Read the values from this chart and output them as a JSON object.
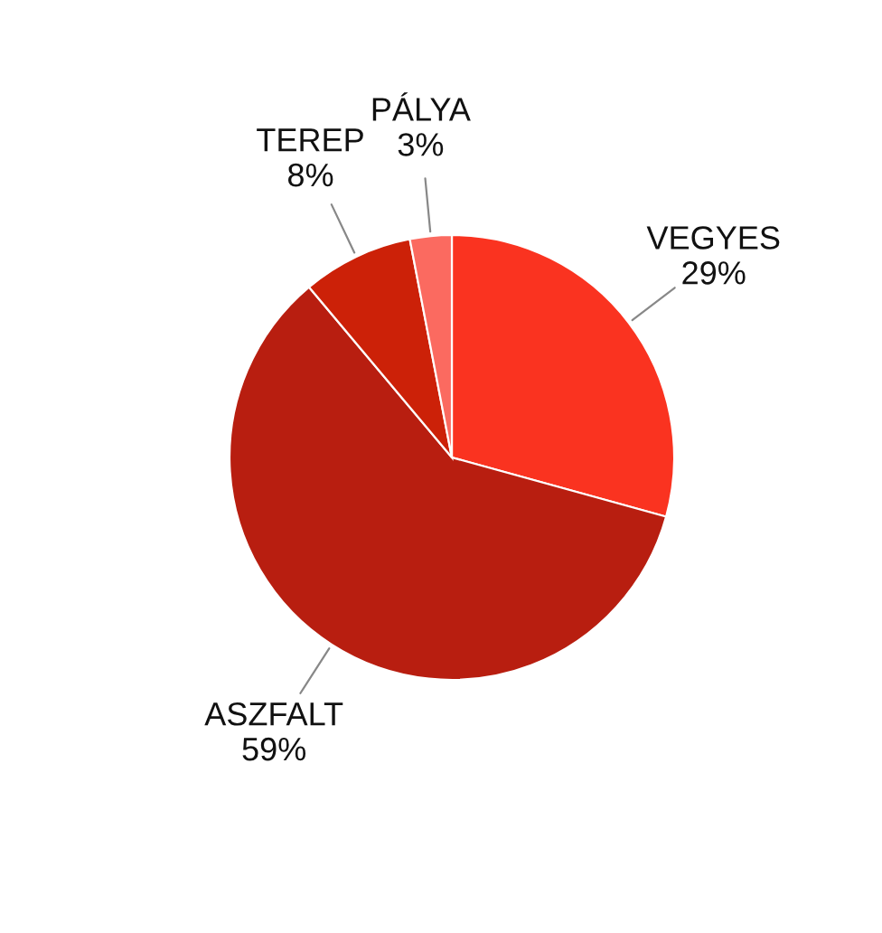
{
  "chart_data": {
    "type": "pie",
    "categories": [
      "VEGYES",
      "ASZFALT",
      "TEREP",
      "PÁLYA"
    ],
    "values": [
      29,
      59,
      8,
      3
    ],
    "value_labels": [
      "29%",
      "59%",
      "8%",
      "3%"
    ],
    "colors": [
      "#fa3320",
      "#b81e10",
      "#cc2108",
      "#fb6a60"
    ]
  }
}
